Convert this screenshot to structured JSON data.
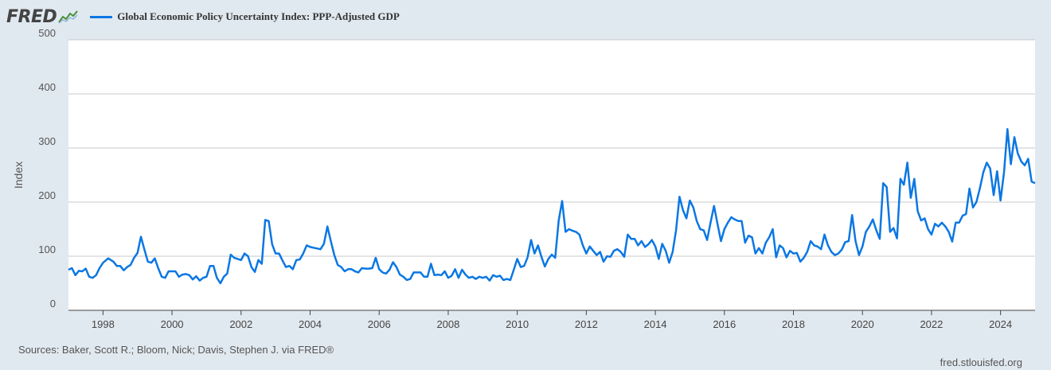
{
  "brand": {
    "logo_text": "FRED"
  },
  "legend": {
    "series_label": "Global Economic Policy Uncertainty Index: PPP-Adjusted GDP",
    "color": "#0b77e3"
  },
  "footer": {
    "sources": "Sources: Baker, Scott R.; Bloom, Nick; Davis, Stephen J. via FRED®",
    "site": "fred.stlouisfed.org"
  },
  "chart_data": {
    "type": "line",
    "title": "Global Economic Policy Uncertainty Index: PPP-Adjusted GDP",
    "ylabel": "Index",
    "xlabel": "",
    "ylim": [
      0,
      500
    ],
    "yticks": [
      0,
      100,
      200,
      300,
      400,
      500
    ],
    "xlim": [
      1997.0,
      2025.0
    ],
    "xticks": [
      "1998",
      "2000",
      "2002",
      "2004",
      "2006",
      "2008",
      "2010",
      "2012",
      "2014",
      "2016",
      "2018",
      "2020",
      "2022",
      "2024"
    ],
    "grid": true,
    "series": [
      {
        "color": "#0b77e3",
        "points": [
          [
            1997.0,
            75
          ],
          [
            1997.1,
            78
          ],
          [
            1997.2,
            65
          ],
          [
            1997.3,
            73
          ],
          [
            1997.4,
            72
          ],
          [
            1997.5,
            77
          ],
          [
            1997.6,
            62
          ],
          [
            1997.7,
            60
          ],
          [
            1997.8,
            65
          ],
          [
            1997.9,
            78
          ],
          [
            1998.0,
            88
          ],
          [
            1998.15,
            96
          ],
          [
            1998.3,
            90
          ],
          [
            1998.4,
            82
          ],
          [
            1998.5,
            82
          ],
          [
            1998.6,
            74
          ],
          [
            1998.7,
            80
          ],
          [
            1998.8,
            84
          ],
          [
            1998.9,
            97
          ],
          [
            1999.0,
            106
          ],
          [
            1999.1,
            136
          ],
          [
            1999.2,
            112
          ],
          [
            1999.3,
            90
          ],
          [
            1999.4,
            88
          ],
          [
            1999.5,
            96
          ],
          [
            1999.6,
            78
          ],
          [
            1999.7,
            62
          ],
          [
            1999.8,
            60
          ],
          [
            1999.9,
            72
          ],
          [
            2000.0,
            72
          ],
          [
            2000.1,
            72
          ],
          [
            2000.2,
            62
          ],
          [
            2000.3,
            66
          ],
          [
            2000.4,
            67
          ],
          [
            2000.5,
            65
          ],
          [
            2000.6,
            57
          ],
          [
            2000.7,
            63
          ],
          [
            2000.8,
            55
          ],
          [
            2000.9,
            60
          ],
          [
            2001.0,
            62
          ],
          [
            2001.1,
            82
          ],
          [
            2001.2,
            82
          ],
          [
            2001.3,
            60
          ],
          [
            2001.4,
            50
          ],
          [
            2001.5,
            62
          ],
          [
            2001.6,
            68
          ],
          [
            2001.7,
            103
          ],
          [
            2001.8,
            97
          ],
          [
            2001.9,
            95
          ],
          [
            2002.0,
            93
          ],
          [
            2002.1,
            105
          ],
          [
            2002.2,
            100
          ],
          [
            2002.3,
            80
          ],
          [
            2002.4,
            71
          ],
          [
            2002.5,
            93
          ],
          [
            2002.6,
            86
          ],
          [
            2002.7,
            167
          ],
          [
            2002.8,
            165
          ],
          [
            2002.9,
            122
          ],
          [
            2003.0,
            105
          ],
          [
            2003.1,
            105
          ],
          [
            2003.2,
            92
          ],
          [
            2003.3,
            80
          ],
          [
            2003.4,
            82
          ],
          [
            2003.5,
            76
          ],
          [
            2003.6,
            93
          ],
          [
            2003.7,
            94
          ],
          [
            2003.8,
            105
          ],
          [
            2003.9,
            120
          ],
          [
            2004.0,
            117
          ],
          [
            2004.15,
            115
          ],
          [
            2004.3,
            113
          ],
          [
            2004.4,
            123
          ],
          [
            2004.5,
            155
          ],
          [
            2004.6,
            128
          ],
          [
            2004.7,
            102
          ],
          [
            2004.8,
            84
          ],
          [
            2004.9,
            80
          ],
          [
            2005.0,
            72
          ],
          [
            2005.1,
            76
          ],
          [
            2005.2,
            76
          ],
          [
            2005.3,
            72
          ],
          [
            2005.4,
            70
          ],
          [
            2005.5,
            78
          ],
          [
            2005.6,
            77
          ],
          [
            2005.7,
            77
          ],
          [
            2005.8,
            78
          ],
          [
            2005.9,
            97
          ],
          [
            2006.0,
            76
          ],
          [
            2006.1,
            70
          ],
          [
            2006.2,
            68
          ],
          [
            2006.3,
            75
          ],
          [
            2006.4,
            89
          ],
          [
            2006.5,
            80
          ],
          [
            2006.6,
            66
          ],
          [
            2006.7,
            62
          ],
          [
            2006.8,
            56
          ],
          [
            2006.9,
            58
          ],
          [
            2007.0,
            70
          ],
          [
            2007.1,
            70
          ],
          [
            2007.2,
            70
          ],
          [
            2007.3,
            62
          ],
          [
            2007.4,
            62
          ],
          [
            2007.5,
            86
          ],
          [
            2007.6,
            65
          ],
          [
            2007.7,
            66
          ],
          [
            2007.8,
            65
          ],
          [
            2007.9,
            72
          ],
          [
            2008.0,
            60
          ],
          [
            2008.1,
            64
          ],
          [
            2008.2,
            76
          ],
          [
            2008.3,
            60
          ],
          [
            2008.4,
            75
          ],
          [
            2008.5,
            66
          ],
          [
            2008.6,
            60
          ],
          [
            2008.7,
            62
          ],
          [
            2008.8,
            58
          ],
          [
            2008.9,
            62
          ],
          [
            2009.0,
            60
          ],
          [
            2009.1,
            62
          ],
          [
            2009.2,
            55
          ],
          [
            2009.3,
            65
          ],
          [
            2009.4,
            62
          ],
          [
            2009.5,
            64
          ],
          [
            2009.6,
            56
          ],
          [
            2009.7,
            58
          ],
          [
            2009.8,
            56
          ],
          [
            2009.9,
            75
          ],
          [
            2010.0,
            95
          ],
          [
            2010.1,
            80
          ],
          [
            2010.2,
            82
          ],
          [
            2010.3,
            98
          ],
          [
            2010.4,
            130
          ],
          [
            2010.5,
            105
          ],
          [
            2010.6,
            120
          ],
          [
            2010.7,
            99
          ],
          [
            2010.8,
            81
          ],
          [
            2010.9,
            95
          ],
          [
            2011.0,
            103
          ],
          [
            2011.1,
            97
          ],
          [
            2011.2,
            166
          ],
          [
            2011.3,
            202
          ],
          [
            2011.4,
            145
          ],
          [
            2011.5,
            150
          ],
          [
            2011.6,
            147
          ],
          [
            2011.7,
            145
          ],
          [
            2011.8,
            140
          ],
          [
            2011.9,
            120
          ],
          [
            2012.0,
            105
          ],
          [
            2012.1,
            118
          ],
          [
            2012.2,
            110
          ],
          [
            2012.3,
            102
          ],
          [
            2012.4,
            108
          ],
          [
            2012.5,
            90
          ],
          [
            2012.6,
            100
          ],
          [
            2012.7,
            99
          ],
          [
            2012.8,
            110
          ],
          [
            2012.9,
            113
          ],
          [
            2013.0,
            108
          ],
          [
            2013.1,
            99
          ],
          [
            2013.2,
            140
          ],
          [
            2013.3,
            132
          ],
          [
            2013.4,
            132
          ],
          [
            2013.5,
            120
          ],
          [
            2013.6,
            128
          ],
          [
            2013.7,
            117
          ],
          [
            2013.8,
            122
          ],
          [
            2013.9,
            130
          ],
          [
            2014.0,
            118
          ],
          [
            2014.1,
            95
          ],
          [
            2014.2,
            123
          ],
          [
            2014.3,
            110
          ],
          [
            2014.4,
            88
          ],
          [
            2014.5,
            108
          ],
          [
            2014.6,
            148
          ],
          [
            2014.7,
            210
          ],
          [
            2014.8,
            185
          ],
          [
            2014.9,
            170
          ],
          [
            2015.0,
            203
          ],
          [
            2015.1,
            190
          ],
          [
            2015.2,
            165
          ],
          [
            2015.3,
            150
          ],
          [
            2015.4,
            148
          ],
          [
            2015.5,
            130
          ],
          [
            2015.6,
            162
          ],
          [
            2015.7,
            193
          ],
          [
            2015.8,
            160
          ],
          [
            2015.9,
            128
          ],
          [
            2016.0,
            150
          ],
          [
            2016.1,
            162
          ],
          [
            2016.2,
            172
          ],
          [
            2016.3,
            168
          ],
          [
            2016.4,
            165
          ],
          [
            2016.5,
            165
          ],
          [
            2016.6,
            125
          ],
          [
            2016.7,
            138
          ],
          [
            2016.8,
            135
          ],
          [
            2016.9,
            105
          ],
          [
            2017.0,
            115
          ],
          [
            2017.1,
            105
          ],
          [
            2017.2,
            125
          ],
          [
            2017.3,
            135
          ],
          [
            2017.4,
            150
          ],
          [
            2017.5,
            98
          ],
          [
            2017.6,
            120
          ],
          [
            2017.7,
            115
          ],
          [
            2017.8,
            98
          ],
          [
            2017.9,
            110
          ],
          [
            2018.0,
            105
          ],
          [
            2018.1,
            106
          ],
          [
            2018.2,
            90
          ],
          [
            2018.3,
            97
          ],
          [
            2018.4,
            108
          ],
          [
            2018.5,
            128
          ],
          [
            2018.6,
            120
          ],
          [
            2018.7,
            118
          ],
          [
            2018.8,
            113
          ],
          [
            2018.9,
            140
          ],
          [
            2019.0,
            120
          ],
          [
            2019.1,
            108
          ],
          [
            2019.2,
            102
          ],
          [
            2019.3,
            105
          ],
          [
            2019.4,
            112
          ],
          [
            2019.5,
            126
          ],
          [
            2019.6,
            128
          ],
          [
            2019.7,
            176
          ],
          [
            2019.8,
            128
          ],
          [
            2019.9,
            102
          ],
          [
            2020.0,
            118
          ],
          [
            2020.1,
            145
          ],
          [
            2020.2,
            155
          ],
          [
            2020.3,
            168
          ],
          [
            2020.4,
            148
          ],
          [
            2020.5,
            132
          ],
          [
            2020.6,
            235
          ],
          [
            2020.7,
            228
          ],
          [
            2020.8,
            145
          ],
          [
            2020.9,
            152
          ],
          [
            2021.0,
            133
          ],
          [
            2021.1,
            243
          ],
          [
            2021.2,
            232
          ],
          [
            2021.3,
            273
          ],
          [
            2021.4,
            208
          ],
          [
            2021.5,
            243
          ],
          [
            2021.6,
            183
          ],
          [
            2021.7,
            166
          ],
          [
            2021.8,
            170
          ],
          [
            2021.9,
            150
          ],
          [
            2022.0,
            140
          ],
          [
            2022.1,
            160
          ],
          [
            2022.2,
            155
          ],
          [
            2022.3,
            162
          ],
          [
            2022.4,
            155
          ],
          [
            2022.5,
            145
          ],
          [
            2022.6,
            127
          ],
          [
            2022.7,
            162
          ],
          [
            2022.8,
            162
          ],
          [
            2022.9,
            175
          ],
          [
            2023.0,
            178
          ],
          [
            2023.1,
            225
          ],
          [
            2023.2,
            190
          ],
          [
            2023.3,
            200
          ],
          [
            2023.4,
            225
          ],
          [
            2023.5,
            255
          ],
          [
            2023.6,
            273
          ],
          [
            2023.7,
            262
          ],
          [
            2023.8,
            213
          ],
          [
            2023.9,
            257
          ],
          [
            2024.0,
            203
          ],
          [
            2024.1,
            255
          ],
          [
            2024.2,
            335
          ],
          [
            2024.3,
            270
          ],
          [
            2024.4,
            320
          ],
          [
            2024.5,
            290
          ],
          [
            2024.6,
            275
          ],
          [
            2024.7,
            268
          ],
          [
            2024.8,
            280
          ],
          [
            2024.9,
            238
          ],
          [
            2025.0,
            235
          ]
        ]
      }
    ]
  }
}
